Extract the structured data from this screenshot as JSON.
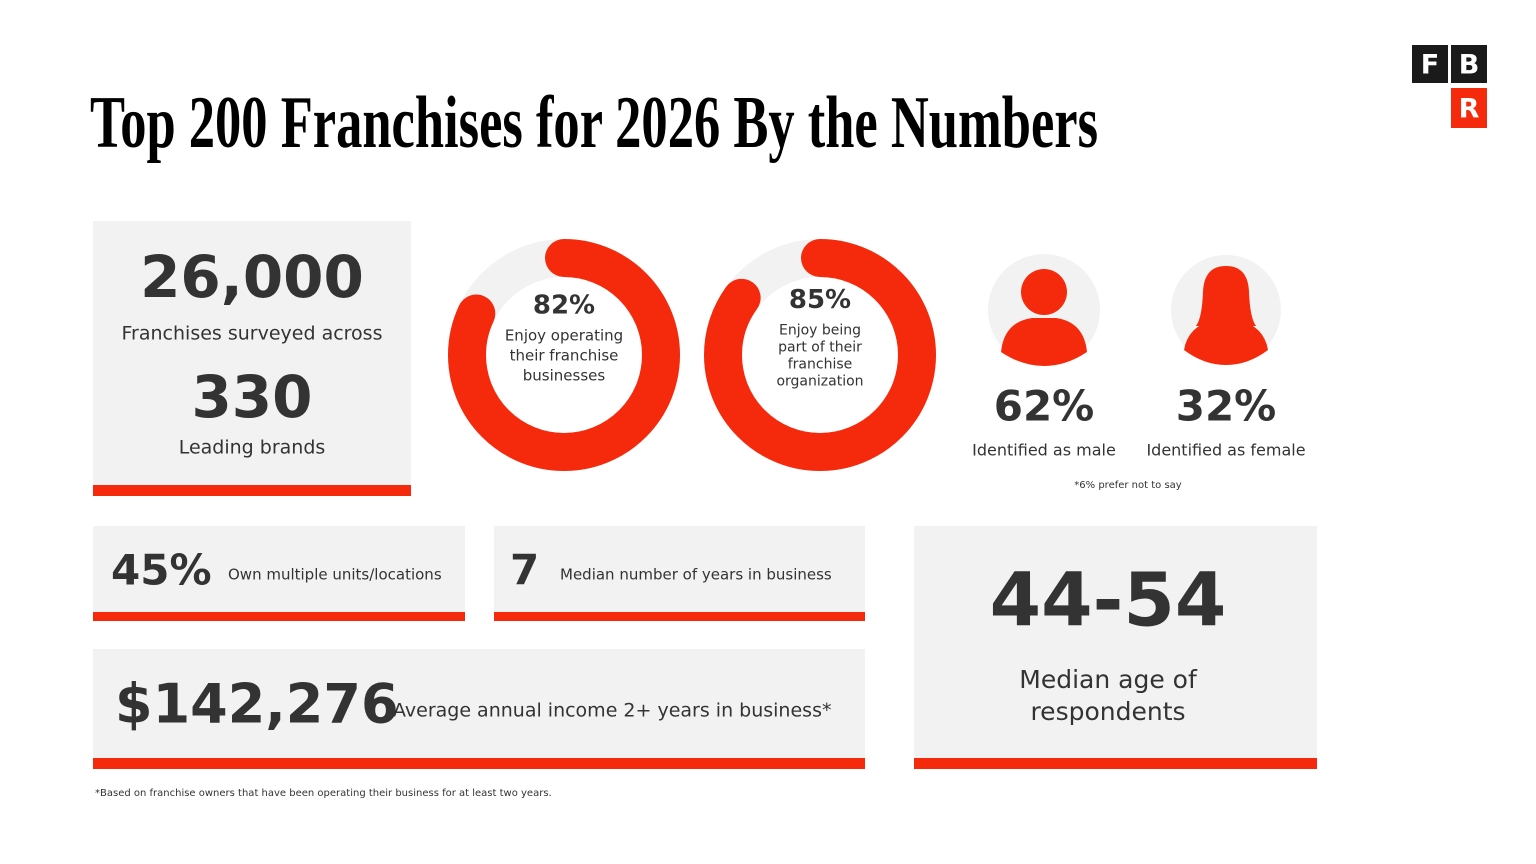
{
  "logo": [
    "F",
    "B",
    "R"
  ],
  "title": "Top 200 Franchises for 2026 By the Numbers",
  "stats": [
    {
      "value": "26,000",
      "label": "Franchises surveyed across"
    },
    {
      "value": "330",
      "label": "Leading brands"
    }
  ],
  "donuts": [
    {
      "value": 82,
      "value_label": "82%",
      "lines": [
        "Enjoy operating",
        "their franchise",
        "businesses"
      ]
    },
    {
      "value": 85,
      "value_label": "85%",
      "lines": [
        "Enjoy being",
        "part of their",
        "franchise",
        "organization"
      ]
    }
  ],
  "gender": [
    {
      "value": "62%",
      "label": "Identified as male"
    },
    {
      "value": "32%",
      "label": "Identified as female"
    }
  ],
  "gender_note": "*6% prefer not to say",
  "cards": [
    {
      "value": "45%",
      "label": "Own multiple units/locations"
    },
    {
      "value": "7",
      "label": "Median number of years in business"
    },
    {
      "value": "$142,276",
      "label": "Average annual income 2+ years in business*"
    },
    {
      "value": "44-54",
      "lines": [
        "Median age of",
        "respondents"
      ]
    }
  ],
  "footnote": "*Based on franchise owners that have been operating their business for at least two years."
}
